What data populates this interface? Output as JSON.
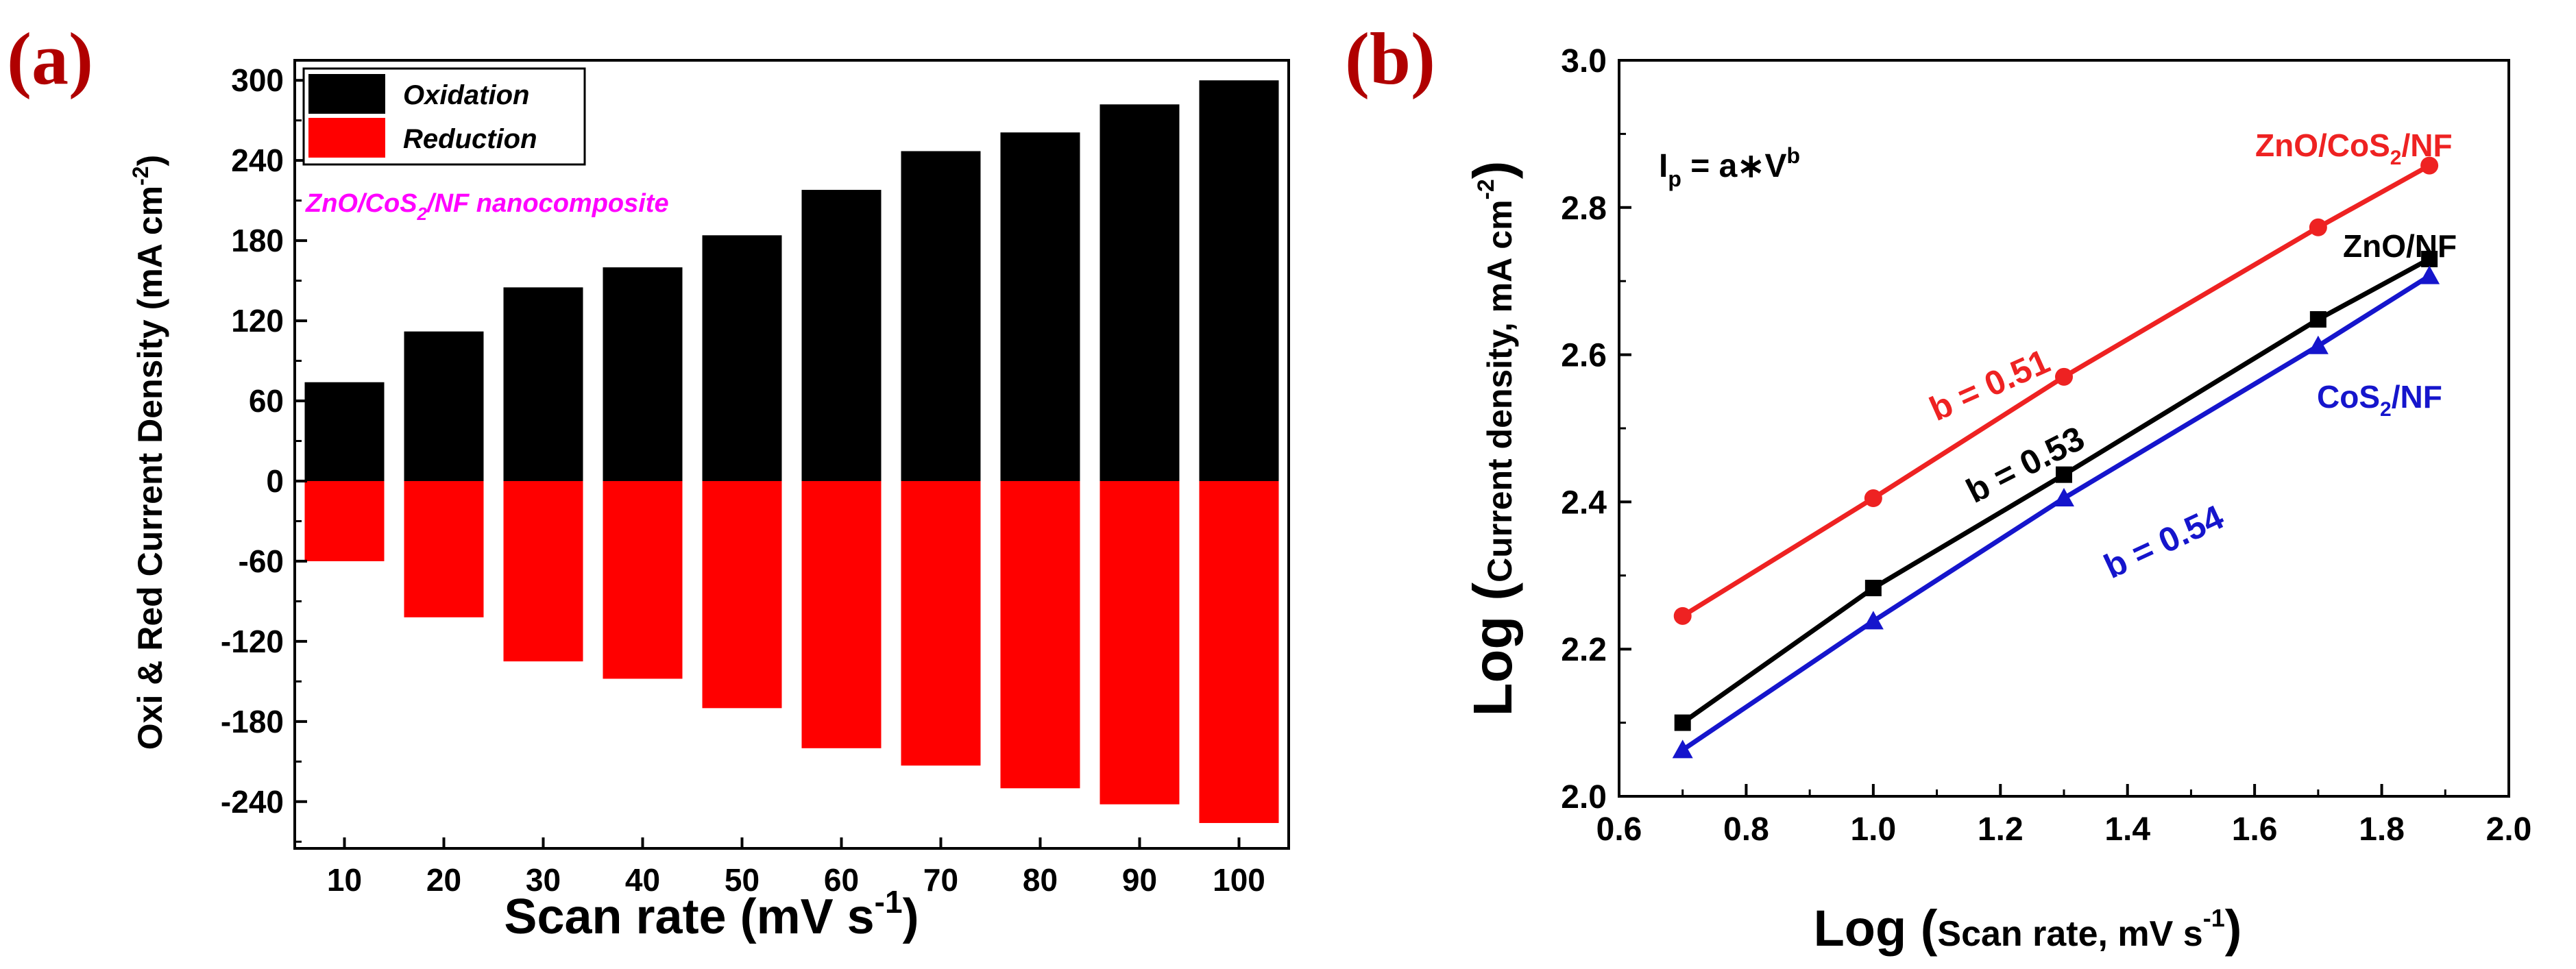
{
  "panel_a": {
    "label": "(a)",
    "legend": {
      "oxidation": "Oxidation",
      "reduction": "Reduction"
    },
    "annotation": {
      "prefix": "ZnO/CoS",
      "sub": "2",
      "suffix": "/NF nanocomposite"
    },
    "xlabel": "Scan rate (mV s",
    "xlabel_sup": "-1",
    "xlabel_end": ")",
    "ylabel": "Oxi & Red Current Density (mA cm",
    "ylabel_sup": "-2",
    "ylabel_end": ")"
  },
  "panel_b": {
    "label": "(b)",
    "equation": {
      "base": "I",
      "sub": "p",
      "mid": " = a",
      "op": "∗",
      "v": "V",
      "sup": "b"
    },
    "xlabel_big": "Log (",
    "xlabel_small": "Scan rate, mV s",
    "xlabel_sup": "-1",
    "xlabel_end": ")",
    "ylabel_big": "Log (",
    "ylabel_small": "Current density, mA cm",
    "ylabel_sup": "-2",
    "ylabel_end": ")"
  },
  "chart_data": [
    {
      "type": "bar",
      "title": "",
      "categories": [
        "10",
        "20",
        "30",
        "40",
        "50",
        "60",
        "70",
        "80",
        "90",
        "100"
      ],
      "series": [
        {
          "name": "Oxidation",
          "color": "#000000",
          "values": [
            74,
            112,
            145,
            160,
            184,
            218,
            247,
            261,
            282,
            300
          ]
        },
        {
          "name": "Reduction",
          "color": "#ff0000",
          "values": [
            -60,
            -102,
            -135,
            -148,
            -170,
            -200,
            -213,
            -230,
            -242,
            -256
          ]
        }
      ],
      "xlabel": "Scan rate (mV s-1)",
      "ylabel": "Oxi & Red Current Density (mA cm-2)",
      "ylim": [
        -275,
        315
      ],
      "yticks": [
        "300",
        "240",
        "180",
        "120",
        "60",
        "0",
        "-60",
        "-120",
        "-180",
        "-240"
      ],
      "ytick_values": [
        300,
        240,
        180,
        120,
        60,
        0,
        -60,
        -120,
        -180,
        -240
      ],
      "legend_position": "top-left"
    },
    {
      "type": "line",
      "title": "",
      "series": [
        {
          "name": "ZnO/CoS2/NF",
          "color": "#ee2222",
          "marker": "circle",
          "x": [
            0.7,
            1.0,
            1.3,
            1.7,
            1.875
          ],
          "y": [
            2.245,
            2.405,
            2.57,
            2.773,
            2.857
          ],
          "slope_label": "b = 0.51",
          "slope_value": 0.51
        },
        {
          "name": "ZnO/NF",
          "color": "#000000",
          "marker": "square",
          "x": [
            0.7,
            1.0,
            1.3,
            1.7,
            1.875
          ],
          "y": [
            2.1,
            2.283,
            2.437,
            2.648,
            2.73
          ],
          "slope_label": "b = 0.53",
          "slope_value": 0.53
        },
        {
          "name": "CoS2/NF",
          "color": "#1515cc",
          "marker": "triangle",
          "x": [
            0.7,
            1.0,
            1.3,
            1.7,
            1.875
          ],
          "y": [
            2.063,
            2.238,
            2.405,
            2.612,
            2.707
          ],
          "slope_label": "b = 0.54",
          "slope_value": 0.54
        }
      ],
      "xlabel": "Log (Scan rate, mV s-1)",
      "ylabel": "Log (Current density, mA cm-2)",
      "xlim": [
        0.6,
        2.0
      ],
      "ylim": [
        2.0,
        3.0
      ],
      "xticks": [
        "0.6",
        "0.8",
        "1.0",
        "1.2",
        "1.4",
        "1.6",
        "1.8",
        "2.0"
      ],
      "xtick_values": [
        0.6,
        0.8,
        1.0,
        1.2,
        1.4,
        1.6,
        1.8,
        2.0
      ],
      "yticks": [
        "2.0",
        "2.2",
        "2.4",
        "2.6",
        "2.8",
        "3.0"
      ],
      "ytick_values": [
        2.0,
        2.2,
        2.4,
        2.6,
        2.8,
        3.0
      ],
      "series_labels": [
        {
          "text": "ZnO/CoS",
          "sub": "2",
          "after": "/NF",
          "color": "#ee2222"
        },
        {
          "text": "ZnO/NF",
          "sub": "",
          "after": "",
          "color": "#000000"
        },
        {
          "text": "CoS",
          "sub": "2",
          "after": "/NF",
          "color": "#1515cc"
        }
      ]
    }
  ]
}
